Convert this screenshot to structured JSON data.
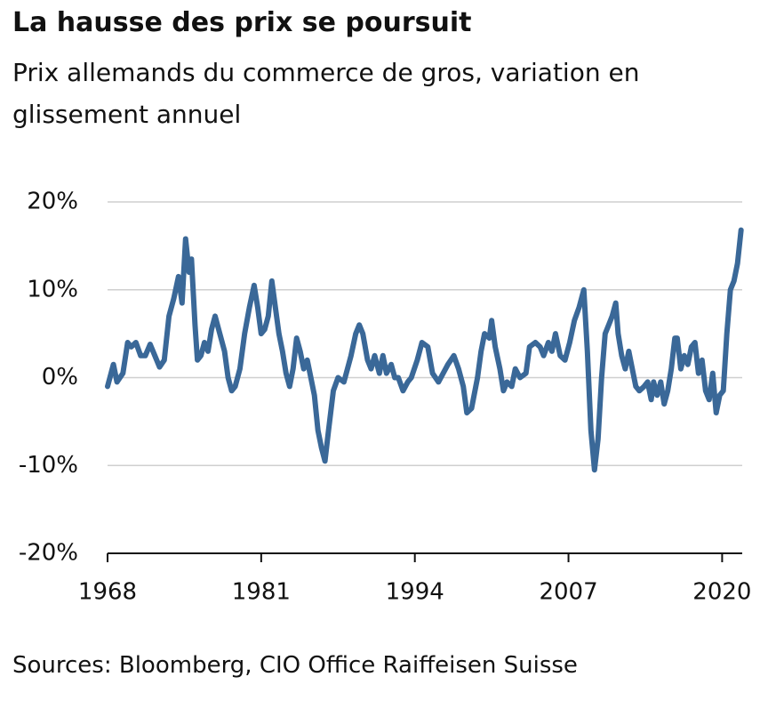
{
  "chart_data": {
    "type": "line",
    "title": "La hausse des prix se poursuit",
    "subtitle": "Prix allemands du commerce de gros, variation en glissement annuel",
    "source": "Sources: Bloomberg, CIO Office Raiffeisen Suisse",
    "color": "#3a6898",
    "x": [
      1968.0,
      1968.5,
      1968.8,
      1969.3,
      1969.7,
      1970.0,
      1970.4,
      1970.8,
      1971.2,
      1971.6,
      1972.0,
      1972.4,
      1972.8,
      1973.2,
      1973.6,
      1974.0,
      1974.3,
      1974.6,
      1974.9,
      1975.1,
      1975.4,
      1975.6,
      1975.9,
      1976.2,
      1976.5,
      1976.8,
      1977.1,
      1977.5,
      1977.9,
      1978.2,
      1978.5,
      1978.8,
      1979.2,
      1979.6,
      1980.0,
      1980.4,
      1980.7,
      1981.0,
      1981.3,
      1981.6,
      1981.9,
      1982.2,
      1982.5,
      1982.8,
      1983.1,
      1983.4,
      1983.7,
      1984.0,
      1984.3,
      1984.6,
      1984.9,
      1985.2,
      1985.5,
      1985.8,
      1986.1,
      1986.4,
      1986.7,
      1987.1,
      1987.5,
      1988.0,
      1988.3,
      1988.6,
      1989.0,
      1989.3,
      1989.6,
      1990.0,
      1990.3,
      1990.6,
      1991.0,
      1991.3,
      1991.6,
      1992.0,
      1992.3,
      1992.6,
      1993.0,
      1993.4,
      1993.7,
      1994.2,
      1994.6,
      1995.1,
      1995.5,
      1996.0,
      1996.4,
      1996.8,
      1997.3,
      1997.7,
      1998.1,
      1998.4,
      1998.8,
      1999.3,
      1999.6,
      1999.9,
      2000.3,
      2000.5,
      2000.8,
      2001.2,
      2001.5,
      2001.8,
      2002.2,
      2002.5,
      2002.9,
      2003.4,
      2003.7,
      2004.2,
      2004.6,
      2004.9,
      2005.3,
      2005.6,
      2005.9,
      2006.3,
      2006.7,
      2007.1,
      2007.5,
      2007.9,
      2008.3,
      2008.6,
      2008.9,
      2009.2,
      2009.5,
      2009.8,
      2010.1,
      2010.4,
      2010.7,
      2011.0,
      2011.2,
      2011.5,
      2011.8,
      2012.1,
      2012.4,
      2012.7,
      2013.0,
      2013.4,
      2013.7,
      2014.0,
      2014.2,
      2014.5,
      2014.8,
      2015.1,
      2015.4,
      2015.7,
      2016.0,
      2016.2,
      2016.5,
      2016.8,
      2017.1,
      2017.4,
      2017.7,
      2018.0,
      2018.3,
      2018.6,
      2018.9,
      2019.2,
      2019.5,
      2019.8,
      2020.1,
      2020.4,
      2020.7,
      2021.0,
      2021.3,
      2021.6
    ],
    "values": [
      -1,
      1.5,
      -0.5,
      0.5,
      4,
      3.5,
      4,
      2.5,
      2.5,
      3.8,
      2.5,
      1.2,
      2,
      7,
      9,
      11.5,
      8.5,
      15.8,
      12,
      13.5,
      6,
      2,
      2.5,
      4,
      3,
      5.5,
      7,
      5,
      3,
      0,
      -1.5,
      -1,
      1,
      5,
      8,
      10.5,
      8,
      5,
      5.5,
      7,
      11,
      8,
      5,
      3,
      0.5,
      -1,
      1,
      4.5,
      3,
      1,
      2,
      0,
      -2,
      -6,
      -8,
      -9.5,
      -6,
      -1.5,
      0,
      -0.5,
      1,
      2.5,
      5,
      6,
      5,
      2,
      1,
      2.5,
      0.5,
      2.5,
      0.5,
      1.5,
      0,
      0,
      -1.5,
      -0.5,
      0,
      2,
      4,
      3.5,
      0.5,
      -0.5,
      0.5,
      1.5,
      2.5,
      1,
      -1,
      -4,
      -3.5,
      0,
      3,
      5,
      4.5,
      6.5,
      3.5,
      1,
      -1.5,
      -0.5,
      -1,
      1,
      0,
      0.5,
      3.5,
      4,
      3.5,
      2.5,
      4,
      3,
      5,
      2.5,
      2,
      4,
      6.5,
      8,
      10,
      3,
      -6,
      -10.5,
      -7,
      0,
      5,
      6,
      7,
      8.5,
      5,
      2.5,
      1,
      3,
      1,
      -1,
      -1.5,
      -1,
      -0.5,
      -2.5,
      -0.5,
      -2,
      -0.5,
      -3,
      -1.5,
      1,
      4.5,
      4.5,
      1,
      2.5,
      1.5,
      3.5,
      4,
      0.5,
      2,
      -1.5,
      -2.5,
      0.5,
      -4,
      -2,
      -1.5,
      5,
      10,
      11,
      13,
      16.8
    ],
    "xlim": [
      1968,
      2021.7
    ],
    "xticks": [
      1968,
      1981,
      1994,
      2007,
      2020
    ],
    "ylim": [
      -20,
      20
    ],
    "yticks": [
      {
        "value": -20,
        "label": "-20%"
      },
      {
        "value": -10,
        "label": "-10%"
      },
      {
        "value": 0,
        "label": "0%"
      },
      {
        "value": 10,
        "label": "10%"
      },
      {
        "value": 20,
        "label": "20%"
      }
    ],
    "grid": true
  }
}
